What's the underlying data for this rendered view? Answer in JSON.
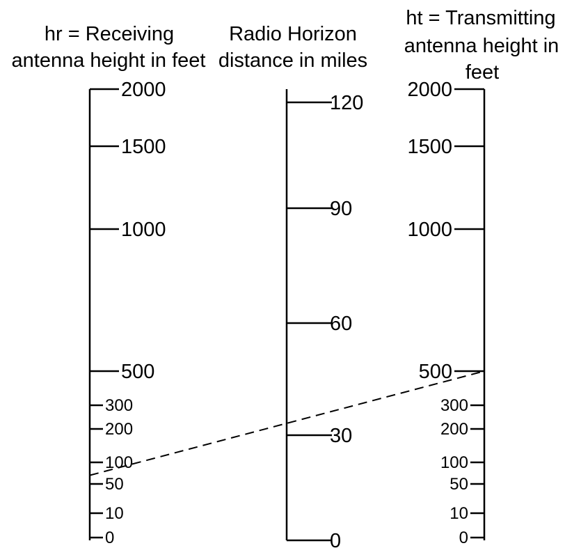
{
  "nomogram": {
    "scales": [
      {
        "key": "receiving",
        "title_lines": [
          "hr = Receiving",
          "antenna height in feet"
        ],
        "unit": "feet",
        "ticks": [
          {
            "value": 2000,
            "label": "2000"
          },
          {
            "value": 1500,
            "label": "1500"
          },
          {
            "value": 1000,
            "label": "1000"
          },
          {
            "value": 500,
            "label": "500"
          },
          {
            "value": 300,
            "label": "300"
          },
          {
            "value": 200,
            "label": "200"
          },
          {
            "value": 100,
            "label": "100"
          },
          {
            "value": 50,
            "label": "50"
          },
          {
            "value": 10,
            "label": "10"
          },
          {
            "value": 0,
            "label": "0"
          }
        ]
      },
      {
        "key": "horizon",
        "title_lines": [
          "Radio Horizon",
          "distance in miles"
        ],
        "unit": "miles",
        "ticks": [
          {
            "value": 120,
            "label": "120"
          },
          {
            "value": 90,
            "label": "90"
          },
          {
            "value": 60,
            "label": "60"
          },
          {
            "value": 30,
            "label": "30"
          },
          {
            "value": 0,
            "label": "0"
          }
        ]
      },
      {
        "key": "transmitting",
        "title_lines": [
          "ht = Transmitting",
          "antenna height in",
          "feet"
        ],
        "unit": "feet",
        "ticks": [
          {
            "value": 2000,
            "label": "2000"
          },
          {
            "value": 1500,
            "label": "1500"
          },
          {
            "value": 1000,
            "label": "1000"
          },
          {
            "value": 500,
            "label": "500"
          },
          {
            "value": 300,
            "label": "300"
          },
          {
            "value": 200,
            "label": "200"
          },
          {
            "value": 100,
            "label": "100"
          },
          {
            "value": 50,
            "label": "50"
          },
          {
            "value": 10,
            "label": "10"
          },
          {
            "value": 0,
            "label": "0"
          }
        ]
      }
    ],
    "example": {
      "receiving_height_ft": 70,
      "transmitting_height_ft": 500,
      "horizon_distance_miles": 33,
      "style": "dashed"
    },
    "colors": {
      "line": "#000000",
      "background": "#ffffff"
    }
  }
}
